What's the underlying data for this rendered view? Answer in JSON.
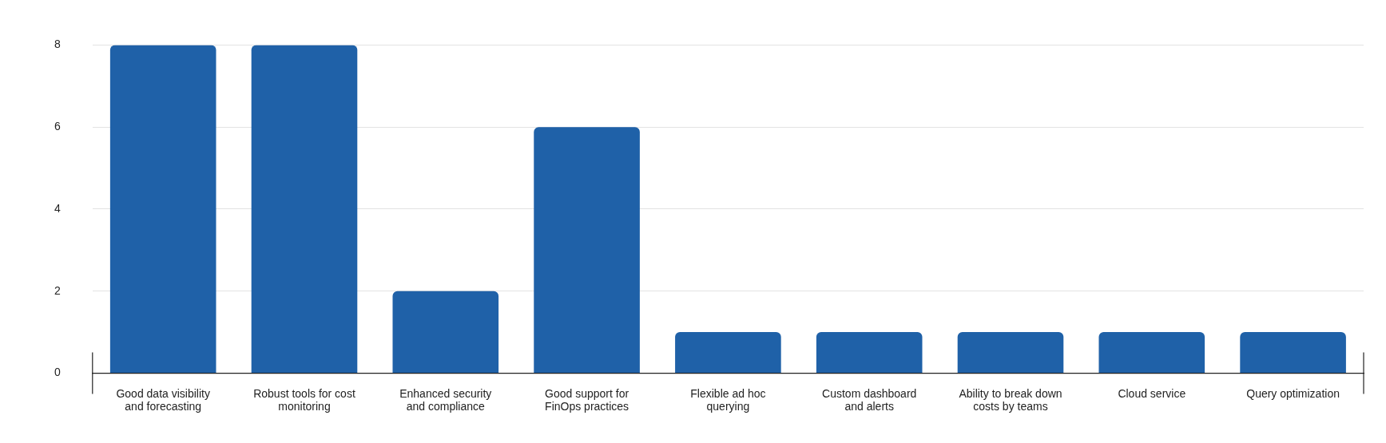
{
  "chart_data": {
    "type": "bar",
    "categories": [
      "Good data visibility and forecasting",
      "Robust tools for cost monitoring",
      "Enhanced security and compliance",
      "Good support for FinOps practices",
      "Flexible ad hoc querying",
      "Custom dashboard and alerts",
      "Ability to break down costs by teams",
      "Cloud service",
      "Query optimization"
    ],
    "values": [
      8,
      8,
      2,
      6,
      1,
      1,
      1,
      1,
      1
    ],
    "color": "#1f61a8",
    "ylim": [
      0,
      8
    ],
    "yticks": [
      0,
      2,
      4,
      6,
      8
    ],
    "grid": "y",
    "legend": false
  }
}
